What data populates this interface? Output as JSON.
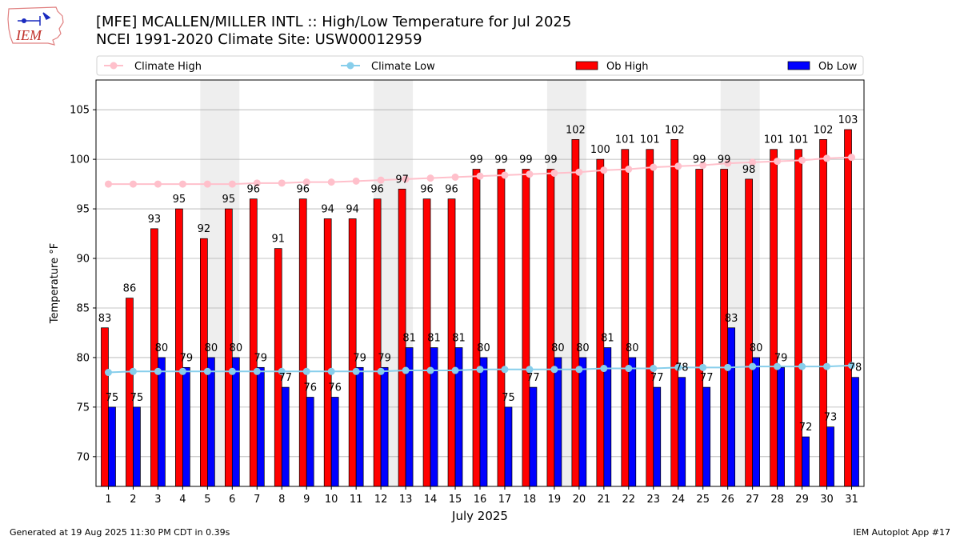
{
  "logo": {
    "text": "IEM"
  },
  "header": {
    "title_line1": "[MFE] MCALLEN/MILLER INTL :: High/Low Temperature for Jul 2025",
    "title_line2": "NCEI 1991-2020 Climate Site: USW00012959"
  },
  "footer": {
    "left": "Generated at 19 Aug 2025 11:30 PM CDT in 0.39s",
    "right": "IEM Autoplot App #17"
  },
  "colors": {
    "ob_high": "#ff0000",
    "ob_low": "#0000ff",
    "climate_high": "#ffc0cb",
    "climate_low": "#87ceeb",
    "weekend_shade": "#eeeeee",
    "grid": "#b0b0b0"
  },
  "chart_data": {
    "type": "bar",
    "xlabel": "July 2025",
    "ylabel": "Temperature °F",
    "ylim": [
      67,
      108
    ],
    "yticks": [
      70,
      75,
      80,
      85,
      90,
      95,
      100,
      105
    ],
    "grid": "horizontal",
    "legend_position": "top",
    "categories": [
      "1",
      "2",
      "3",
      "4",
      "5",
      "6",
      "7",
      "8",
      "9",
      "10",
      "11",
      "12",
      "13",
      "14",
      "15",
      "16",
      "17",
      "18",
      "19",
      "20",
      "21",
      "22",
      "23",
      "24",
      "25",
      "26",
      "27",
      "28",
      "29",
      "30",
      "31"
    ],
    "shaded_day_ranges": [
      [
        5,
        6
      ],
      [
        12,
        13
      ],
      [
        19,
        20
      ],
      [
        26,
        27
      ]
    ],
    "series": [
      {
        "name": "Climate High",
        "kind": "line",
        "values": [
          97.5,
          97.5,
          97.5,
          97.5,
          97.5,
          97.5,
          97.6,
          97.6,
          97.7,
          97.7,
          97.8,
          97.9,
          98.0,
          98.1,
          98.2,
          98.3,
          98.4,
          98.5,
          98.6,
          98.7,
          98.9,
          99.0,
          99.2,
          99.3,
          99.4,
          99.6,
          99.7,
          99.8,
          99.9,
          100.1,
          100.2
        ]
      },
      {
        "name": "Climate Low",
        "kind": "line",
        "values": [
          78.5,
          78.6,
          78.6,
          78.6,
          78.6,
          78.6,
          78.6,
          78.6,
          78.6,
          78.6,
          78.6,
          78.6,
          78.7,
          78.7,
          78.7,
          78.8,
          78.8,
          78.8,
          78.8,
          78.8,
          78.9,
          78.9,
          78.9,
          79.0,
          79.0,
          79.0,
          79.1,
          79.1,
          79.1,
          79.1,
          79.2
        ]
      },
      {
        "name": "Ob High",
        "kind": "bar",
        "values": [
          83,
          86,
          93,
          95,
          92,
          95,
          96,
          91,
          96,
          94,
          94,
          96,
          97,
          96,
          96,
          99,
          99,
          99,
          99,
          102,
          100,
          101,
          101,
          102,
          99,
          99,
          98,
          101,
          101,
          102,
          103
        ]
      },
      {
        "name": "Ob Low",
        "kind": "bar",
        "values": [
          75,
          75,
          80,
          79,
          80,
          80,
          79,
          77,
          76,
          76,
          79,
          79,
          81,
          81,
          81,
          80,
          75,
          77,
          80,
          80,
          81,
          80,
          77,
          78,
          77,
          83,
          80,
          79,
          72,
          73,
          78
        ]
      }
    ]
  }
}
